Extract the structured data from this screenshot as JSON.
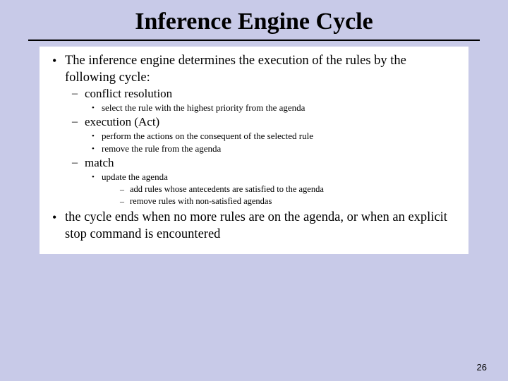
{
  "title": "Inference Engine Cycle",
  "background_color": "#c8cae8",
  "content_background": "#ffffff",
  "rule_color": "#000000",
  "page_number": "26",
  "bullets": {
    "lvl1": "•",
    "lvl2": "–",
    "lvl3": "•",
    "lvl4": "–"
  },
  "items": [
    {
      "text": "The inference engine determines the execution of the rules by the following cycle:",
      "children": [
        {
          "text": "conflict resolution",
          "children": [
            {
              "text": "select the rule with the highest priority from the agenda"
            }
          ]
        },
        {
          "text": "execution (Act)",
          "children": [
            {
              "text": "perform the actions on the consequent of the selected rule"
            },
            {
              "text": "remove the rule from the agenda"
            }
          ]
        },
        {
          "text": "match",
          "children": [
            {
              "text": "update the agenda",
              "children": [
                {
                  "text": "add rules whose antecedents are satisfied to the agenda"
                },
                {
                  "text": "remove rules with non-satisfied agendas"
                }
              ]
            }
          ]
        }
      ]
    },
    {
      "text": "the cycle ends when no more rules are on the agenda, or when an explicit stop command is encountered"
    }
  ]
}
